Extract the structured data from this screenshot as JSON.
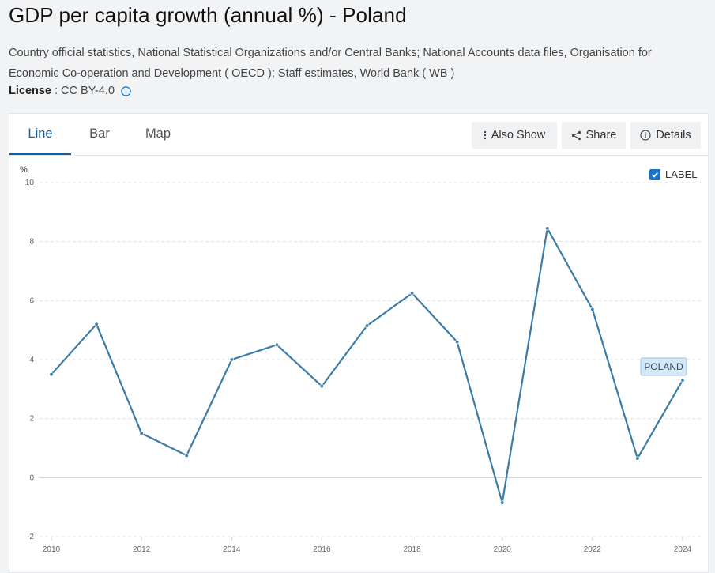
{
  "page": {
    "title": "GDP per capita growth (annual %) - Poland",
    "source": "Country official statistics, National Statistical Organizations and/or Central Banks; National Accounts data files, Organisation for Economic Co-operation and Development ( OECD ); Staff estimates, World Bank ( WB )",
    "license_label": "License",
    "license_value": ": CC BY-4.0"
  },
  "tabs": [
    {
      "label": "Line",
      "active": true
    },
    {
      "label": "Bar",
      "active": false
    },
    {
      "label": "Map",
      "active": false
    }
  ],
  "toolbar": {
    "also_show": "Also Show",
    "share": "Share",
    "details": "Details"
  },
  "label_toggle": {
    "text": "LABEL",
    "checked": true
  },
  "colors": {
    "line": "#3a7ca8",
    "accent": "#0b5fa5",
    "checkbox": "#1a73c8",
    "series_label_bg": "#d5e6f5"
  },
  "chart_data": {
    "type": "line",
    "ylabel": "%",
    "ylim": [
      -2,
      10
    ],
    "yticks": [
      10,
      8,
      6,
      4,
      2,
      0,
      -2
    ],
    "xticks": [
      2010,
      2012,
      2014,
      2016,
      2018,
      2020,
      2022,
      2024
    ],
    "grid": true,
    "series": [
      {
        "name": "POLAND",
        "x": [
          2010,
          2011,
          2012,
          2013,
          2014,
          2015,
          2016,
          2017,
          2018,
          2019,
          2020,
          2021,
          2022,
          2023,
          2024
        ],
        "values": [
          3.5,
          5.2,
          1.5,
          0.75,
          4.0,
          4.5,
          3.1,
          5.15,
          6.25,
          4.6,
          -0.85,
          8.45,
          5.7,
          0.65,
          3.3
        ]
      }
    ]
  }
}
